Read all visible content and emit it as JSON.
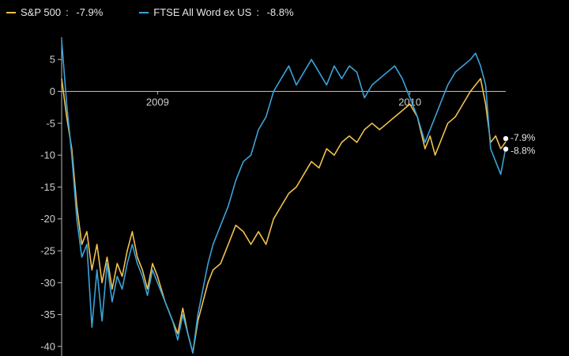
{
  "legend": [
    {
      "label": "S&P 500",
      "value": "-7.9%",
      "color": "#f2c14e"
    },
    {
      "label": "FTSE All Word ex US",
      "value": "-8.8%",
      "color": "#3ba3d9"
    }
  ],
  "chart_data": {
    "type": "line",
    "x_unit": "year",
    "xlim": [
      2008.62,
      2010.38
    ],
    "ylim": [
      -41.5,
      8.5
    ],
    "y_ticks": [
      5,
      0,
      -5,
      -10,
      -15,
      -20,
      -25,
      -30,
      -35,
      -40
    ],
    "x_ticks": [
      {
        "value": 2009.0,
        "label": "2009"
      },
      {
        "value": 2010.0,
        "label": "2010"
      }
    ],
    "grid": false,
    "legend_position": "top-left",
    "end_labels": [
      "-7.9%",
      "-8.8%"
    ],
    "series": [
      {
        "name": "S&P 500",
        "color": "#f2c14e",
        "final_label": "-7.9%",
        "points": [
          [
            2008.62,
            2
          ],
          [
            2008.64,
            -4
          ],
          [
            2008.66,
            -9
          ],
          [
            2008.68,
            -18
          ],
          [
            2008.7,
            -24
          ],
          [
            2008.72,
            -22
          ],
          [
            2008.74,
            -28
          ],
          [
            2008.76,
            -24
          ],
          [
            2008.78,
            -30
          ],
          [
            2008.8,
            -26
          ],
          [
            2008.82,
            -31
          ],
          [
            2008.84,
            -27
          ],
          [
            2008.86,
            -29
          ],
          [
            2008.88,
            -25
          ],
          [
            2008.9,
            -22
          ],
          [
            2008.92,
            -26
          ],
          [
            2008.94,
            -28
          ],
          [
            2008.96,
            -31
          ],
          [
            2008.98,
            -27
          ],
          [
            2009.0,
            -29
          ],
          [
            2009.03,
            -33
          ],
          [
            2009.06,
            -36
          ],
          [
            2009.08,
            -38
          ],
          [
            2009.1,
            -34
          ],
          [
            2009.12,
            -38
          ],
          [
            2009.14,
            -41
          ],
          [
            2009.16,
            -36
          ],
          [
            2009.18,
            -33
          ],
          [
            2009.2,
            -30
          ],
          [
            2009.22,
            -28
          ],
          [
            2009.25,
            -27
          ],
          [
            2009.28,
            -24
          ],
          [
            2009.31,
            -21
          ],
          [
            2009.34,
            -22
          ],
          [
            2009.37,
            -24
          ],
          [
            2009.4,
            -22
          ],
          [
            2009.43,
            -24
          ],
          [
            2009.46,
            -20
          ],
          [
            2009.49,
            -18
          ],
          [
            2009.52,
            -16
          ],
          [
            2009.55,
            -15
          ],
          [
            2009.58,
            -13
          ],
          [
            2009.61,
            -11
          ],
          [
            2009.64,
            -12
          ],
          [
            2009.67,
            -9
          ],
          [
            2009.7,
            -10
          ],
          [
            2009.73,
            -8
          ],
          [
            2009.76,
            -7
          ],
          [
            2009.79,
            -8
          ],
          [
            2009.82,
            -6
          ],
          [
            2009.85,
            -5
          ],
          [
            2009.88,
            -6
          ],
          [
            2009.91,
            -5
          ],
          [
            2009.94,
            -4
          ],
          [
            2009.97,
            -3
          ],
          [
            2010.0,
            -2
          ],
          [
            2010.03,
            -4
          ],
          [
            2010.06,
            -9
          ],
          [
            2010.08,
            -7
          ],
          [
            2010.1,
            -10
          ],
          [
            2010.12,
            -8
          ],
          [
            2010.15,
            -5
          ],
          [
            2010.18,
            -4
          ],
          [
            2010.21,
            -2
          ],
          [
            2010.24,
            0
          ],
          [
            2010.26,
            1
          ],
          [
            2010.28,
            2
          ],
          [
            2010.3,
            -2
          ],
          [
            2010.32,
            -8
          ],
          [
            2010.34,
            -7
          ],
          [
            2010.36,
            -9
          ],
          [
            2010.38,
            -7.9
          ]
        ]
      },
      {
        "name": "FTSE All Word ex US",
        "color": "#3ba3d9",
        "final_label": "-8.8%",
        "points": [
          [
            2008.62,
            8
          ],
          [
            2008.64,
            -2
          ],
          [
            2008.66,
            -10
          ],
          [
            2008.68,
            -20
          ],
          [
            2008.7,
            -26
          ],
          [
            2008.72,
            -24
          ],
          [
            2008.74,
            -37
          ],
          [
            2008.76,
            -28
          ],
          [
            2008.78,
            -36
          ],
          [
            2008.8,
            -27
          ],
          [
            2008.82,
            -33
          ],
          [
            2008.84,
            -29
          ],
          [
            2008.86,
            -31
          ],
          [
            2008.88,
            -27
          ],
          [
            2008.9,
            -24
          ],
          [
            2008.92,
            -27
          ],
          [
            2008.94,
            -29
          ],
          [
            2008.96,
            -32
          ],
          [
            2008.98,
            -28
          ],
          [
            2009.0,
            -30
          ],
          [
            2009.03,
            -33
          ],
          [
            2009.06,
            -36
          ],
          [
            2009.08,
            -39
          ],
          [
            2009.1,
            -35
          ],
          [
            2009.12,
            -38
          ],
          [
            2009.14,
            -41
          ],
          [
            2009.16,
            -35
          ],
          [
            2009.18,
            -31
          ],
          [
            2009.2,
            -27
          ],
          [
            2009.22,
            -24
          ],
          [
            2009.25,
            -21
          ],
          [
            2009.28,
            -18
          ],
          [
            2009.31,
            -14
          ],
          [
            2009.34,
            -11
          ],
          [
            2009.37,
            -10
          ],
          [
            2009.4,
            -6
          ],
          [
            2009.43,
            -4
          ],
          [
            2009.46,
            0
          ],
          [
            2009.49,
            2
          ],
          [
            2009.52,
            4
          ],
          [
            2009.55,
            1
          ],
          [
            2009.58,
            3
          ],
          [
            2009.61,
            5
          ],
          [
            2009.64,
            3
          ],
          [
            2009.67,
            1
          ],
          [
            2009.7,
            4
          ],
          [
            2009.73,
            2
          ],
          [
            2009.76,
            4
          ],
          [
            2009.79,
            3
          ],
          [
            2009.82,
            -1
          ],
          [
            2009.85,
            1
          ],
          [
            2009.88,
            2
          ],
          [
            2009.91,
            3
          ],
          [
            2009.94,
            4
          ],
          [
            2009.97,
            2
          ],
          [
            2010.0,
            -1
          ],
          [
            2010.03,
            -4
          ],
          [
            2010.06,
            -8
          ],
          [
            2010.08,
            -6
          ],
          [
            2010.1,
            -4
          ],
          [
            2010.12,
            -2
          ],
          [
            2010.15,
            1
          ],
          [
            2010.18,
            3
          ],
          [
            2010.21,
            4
          ],
          [
            2010.24,
            5
          ],
          [
            2010.26,
            6
          ],
          [
            2010.28,
            4
          ],
          [
            2010.3,
            1
          ],
          [
            2010.32,
            -9
          ],
          [
            2010.34,
            -11
          ],
          [
            2010.36,
            -13
          ],
          [
            2010.38,
            -8.8
          ]
        ]
      }
    ]
  }
}
